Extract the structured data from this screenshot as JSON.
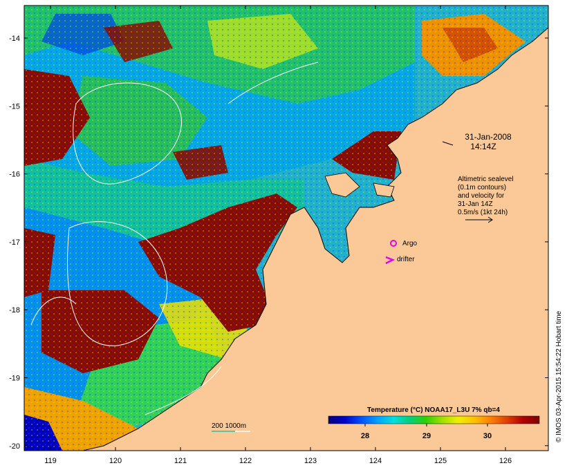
{
  "map": {
    "date_label": "31-Jan-2008",
    "time_label": "14:14Z",
    "sealevel_note": [
      "Altimetric sealevel",
      "(0.1m contours)",
      "and velocity for",
      "31-Jan 14Z",
      "0.5m/s (1kt 24h)"
    ],
    "legend_argo": "Argo",
    "legend_drifter": "drifter",
    "depth_contours_label": "200  1000m",
    "colorbar": {
      "title": "Temperature (°C) NOAA17_L3U 7% qb=4",
      "ticks": [
        "28",
        "29",
        "30"
      ],
      "colors": [
        "#00007a",
        "#0000c8",
        "#0050ff",
        "#00a0ff",
        "#00e0e0",
        "#00d080",
        "#30d000",
        "#a0e000",
        "#f0f000",
        "#ffc000",
        "#ff8000",
        "#e04000",
        "#b00000",
        "#800000"
      ]
    },
    "x_ticks": [
      "119",
      "120",
      "121",
      "122",
      "123",
      "124",
      "125",
      "126"
    ],
    "y_ticks": [
      "-14",
      "-15",
      "-16",
      "-17",
      "-18",
      "-19",
      "-20"
    ],
    "credit": "© IMOS 03-Apr-2015 15:54:22 Hobart time",
    "colors": {
      "land": "#fbc897",
      "warm": "#8b0a00",
      "contour": "#ffffff",
      "argo": "#e600e6"
    }
  }
}
